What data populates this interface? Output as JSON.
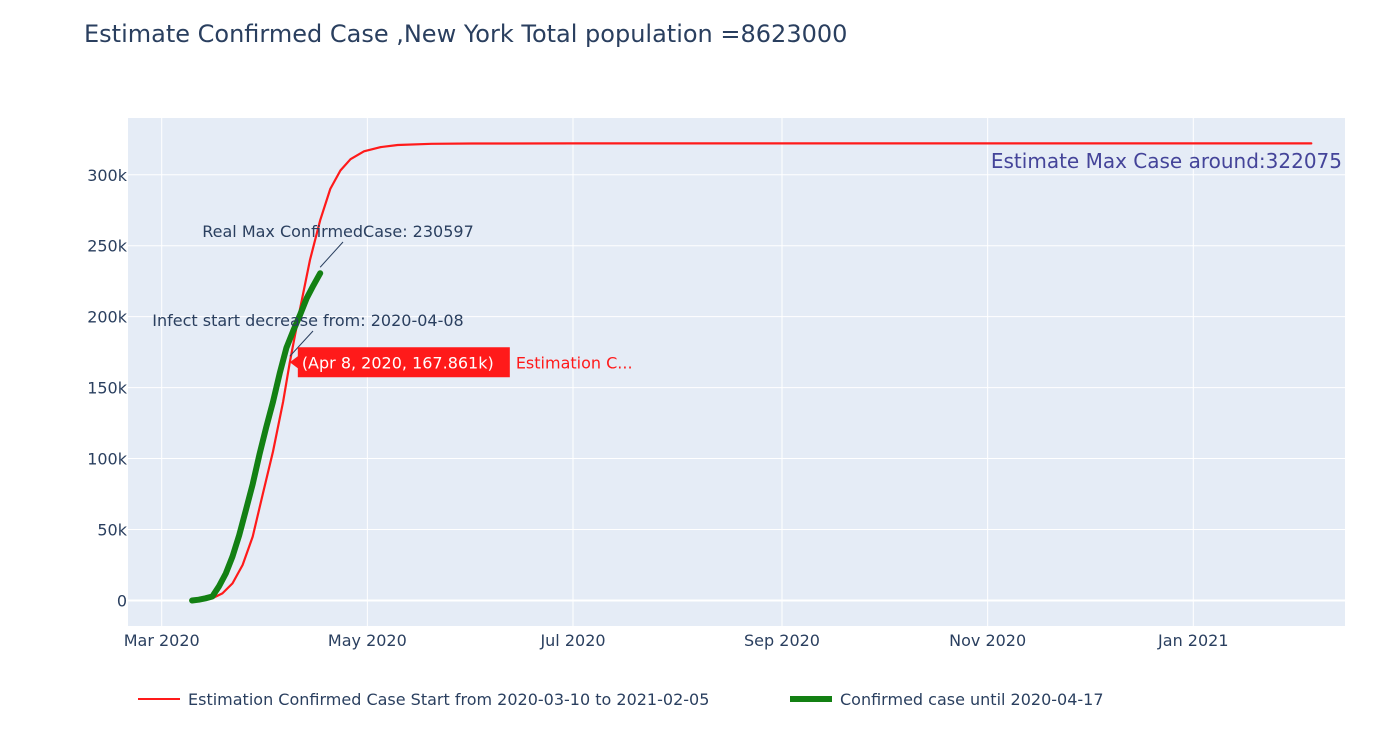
{
  "chart_data": {
    "type": "line",
    "title": "Estimate Confirmed Case ,New York Total population =8623000",
    "xlabel": "",
    "ylabel": "",
    "x_ticks": [
      "Mar 2020",
      "May 2020",
      "Jul 2020",
      "Sep 2020",
      "Nov 2020",
      "Jan 2021"
    ],
    "y_ticks": [
      "0",
      "50k",
      "100k",
      "150k",
      "200k",
      "250k",
      "300k"
    ],
    "xlim": [
      "2020-02-20",
      "2021-02-15"
    ],
    "ylim": [
      -18000,
      340000
    ],
    "grid": true,
    "legend_position": "bottom",
    "series": [
      {
        "name": "Estimation Confirmed Case Start from 2020-03-10 to 2021-02-05",
        "color": "#ff1a1a",
        "x": [
          "2020-03-10",
          "2020-03-13",
          "2020-03-16",
          "2020-03-19",
          "2020-03-22",
          "2020-03-25",
          "2020-03-28",
          "2020-03-31",
          "2020-04-03",
          "2020-04-06",
          "2020-04-08",
          "2020-04-11",
          "2020-04-14",
          "2020-04-17",
          "2020-04-20",
          "2020-04-23",
          "2020-04-26",
          "2020-04-30",
          "2020-05-05",
          "2020-05-10",
          "2020-05-20",
          "2020-06-01",
          "2020-07-01",
          "2020-09-01",
          "2020-11-01",
          "2021-01-01",
          "2021-02-05"
        ],
        "y": [
          0,
          300,
          1500,
          5000,
          12000,
          25000,
          45000,
          75000,
          105000,
          140000,
          167861,
          205000,
          240000,
          268000,
          290000,
          303000,
          311000,
          316500,
          319500,
          321000,
          321800,
          322000,
          322075,
          322075,
          322075,
          322075,
          322075
        ]
      },
      {
        "name": "Confirmed case until 2020-04-17",
        "color": "#138013",
        "x": [
          "2020-03-10",
          "2020-03-12",
          "2020-03-14",
          "2020-03-16",
          "2020-03-18",
          "2020-03-20",
          "2020-03-22",
          "2020-03-24",
          "2020-03-26",
          "2020-03-28",
          "2020-03-30",
          "2020-04-01",
          "2020-04-03",
          "2020-04-05",
          "2020-04-07",
          "2020-04-09",
          "2020-04-11",
          "2020-04-13",
          "2020-04-15",
          "2020-04-17"
        ],
        "y": [
          0,
          500,
          1500,
          2800,
          10000,
          19000,
          31000,
          46000,
          64000,
          82000,
          103000,
          122000,
          140000,
          160000,
          178000,
          190000,
          201000,
          213000,
          222000,
          230597
        ]
      }
    ],
    "annotations": [
      {
        "text": "Estimate Max Case around:322075"
      },
      {
        "text": "Real Max ConfirmedCase: 230597",
        "x": "2020-04-17",
        "y": 230597
      },
      {
        "text": "Infect start decrease from: 2020-04-08",
        "x": "2020-04-08",
        "y": 167861
      }
    ],
    "hover": {
      "value": "(Apr 8, 2020, 167.861k)",
      "series_label": "Estimation C...",
      "x": "2020-04-08",
      "y": 167861,
      "color": "#ff1a1a"
    }
  }
}
